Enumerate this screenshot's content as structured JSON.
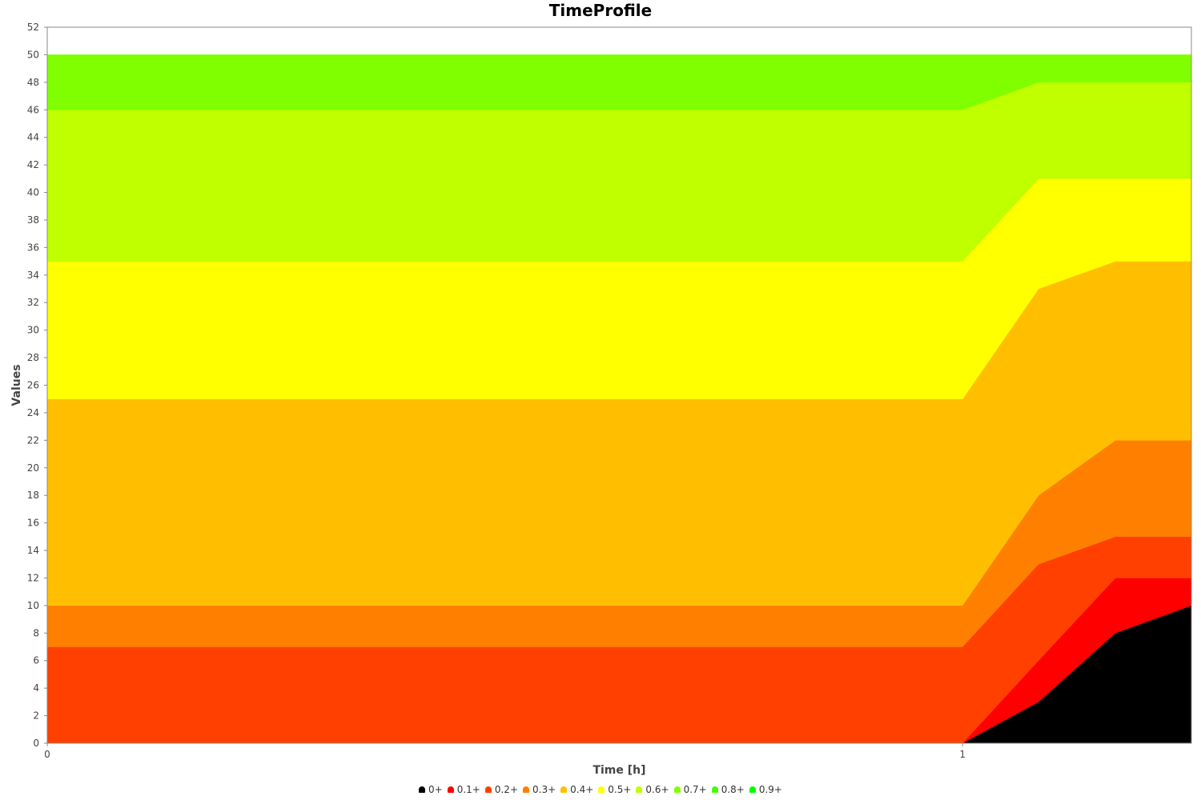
{
  "chart_data": {
    "type": "area",
    "stacked": true,
    "title": "TimeProfile",
    "xlabel": "Time [h]",
    "ylabel": "Values",
    "xlim": [
      0,
      1.25
    ],
    "ylim": [
      0,
      52
    ],
    "x_ticks": [
      {
        "value": 0,
        "label": "0"
      },
      {
        "value": 1,
        "label": "1"
      }
    ],
    "y_ticks": [
      0,
      2,
      4,
      6,
      8,
      10,
      12,
      14,
      16,
      18,
      20,
      22,
      24,
      26,
      28,
      30,
      32,
      34,
      36,
      38,
      40,
      42,
      44,
      46,
      48,
      50,
      52
    ],
    "grid": false,
    "legend_position": "bottom",
    "x": [
      0,
      1,
      1.083,
      1.167,
      1.25
    ],
    "series": [
      {
        "name": "0+",
        "color": "#000000",
        "values": [
          0,
          0,
          3,
          8,
          10
        ]
      },
      {
        "name": "0.1+",
        "color": "#ff0000",
        "values": [
          0,
          0,
          3,
          4,
          2
        ]
      },
      {
        "name": "0.2+",
        "color": "#ff4000",
        "values": [
          7,
          7,
          7,
          3,
          3
        ]
      },
      {
        "name": "0.3+",
        "color": "#ff8000",
        "values": [
          3,
          3,
          5,
          7,
          7
        ]
      },
      {
        "name": "0.4+",
        "color": "#ffbf00",
        "values": [
          15,
          15,
          15,
          13,
          13
        ]
      },
      {
        "name": "0.5+",
        "color": "#ffff00",
        "values": [
          10,
          10,
          8,
          6,
          6
        ]
      },
      {
        "name": "0.6+",
        "color": "#bfff00",
        "values": [
          11,
          11,
          7,
          7,
          7
        ]
      },
      {
        "name": "0.7+",
        "color": "#80ff00",
        "values": [
          4,
          4,
          2,
          2,
          2
        ]
      },
      {
        "name": "0.8+",
        "color": "#40ff00",
        "values": [
          0,
          0,
          0,
          0,
          0
        ]
      },
      {
        "name": "0.9+",
        "color": "#00ff00",
        "values": [
          0,
          0,
          0,
          0,
          0
        ]
      }
    ]
  }
}
